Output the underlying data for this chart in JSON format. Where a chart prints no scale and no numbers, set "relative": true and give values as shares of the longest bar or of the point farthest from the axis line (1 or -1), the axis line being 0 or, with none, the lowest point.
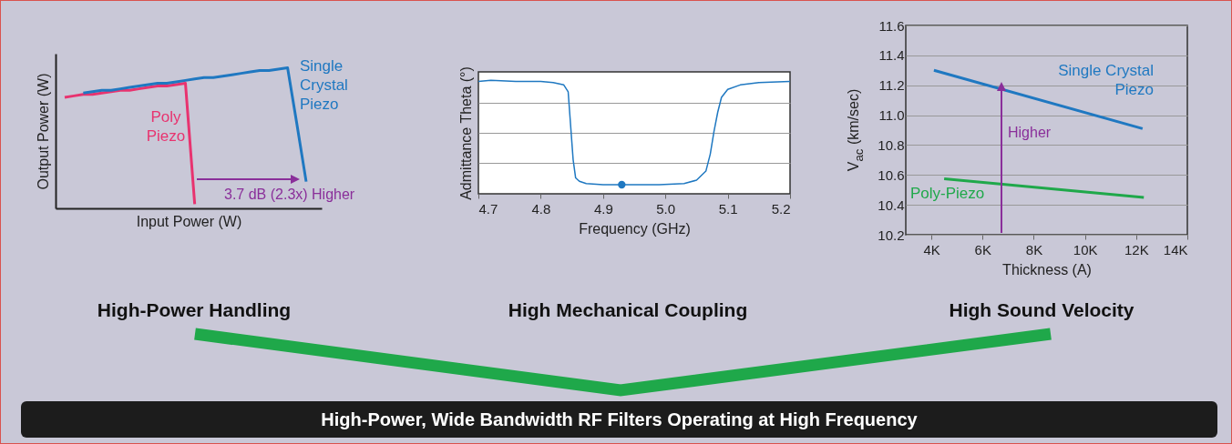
{
  "chart_data": [
    {
      "type": "line",
      "title": "High-Power Handling",
      "xlabel": "Input Power (W)",
      "ylabel": "Output Power (W)",
      "relative": true,
      "categories": [
        null,
        null,
        null,
        null,
        null,
        null,
        null,
        null,
        null,
        null,
        null,
        null,
        null,
        null,
        null,
        null,
        null,
        null,
        null,
        null,
        null,
        null,
        null,
        null,
        null,
        null,
        null
      ],
      "series": [
        {
          "name": "Poly Piezo",
          "color": "#e8336f",
          "values": [
            0.79,
            0.8,
            0.81,
            0.81,
            0.82,
            0.83,
            0.84,
            0.84,
            0.85,
            0.86,
            0.87,
            0.87,
            0.88,
            0.89,
            0.03,
            null,
            null,
            null,
            null,
            null,
            null,
            null,
            null,
            null,
            null,
            null,
            null
          ]
        },
        {
          "name": "Single Crystal Piezo",
          "color": "#1f78c1",
          "values": [
            null,
            null,
            0.82,
            0.83,
            0.84,
            0.84,
            0.85,
            0.86,
            0.87,
            0.88,
            0.89,
            0.89,
            0.9,
            0.91,
            0.92,
            0.93,
            0.93,
            0.94,
            0.95,
            0.96,
            0.97,
            0.98,
            0.98,
            0.99,
            1.0,
            0.6,
            0.19
          ]
        }
      ],
      "annotations": [
        "3.7 dB (2.3x) Higher"
      ]
    },
    {
      "type": "line",
      "title": "High Mechanical Coupling",
      "xlabel": "Frequency (GHz)",
      "ylabel": "Admittance Theta (°)",
      "relative": true,
      "grid": "y",
      "xlim": [
        4.7,
        5.2
      ],
      "xticks": [
        4.7,
        4.8,
        4.9,
        {
          "value": 5,
          "label": "5.0"
        },
        5.1,
        5.2
      ],
      "series": [
        {
          "color": "#1f78c1",
          "x": [
            4.7,
            4.72,
            4.76,
            4.8,
            4.82,
            4.837,
            4.844,
            4.848,
            4.852,
            4.856,
            4.862,
            4.873,
            4.9,
            4.93,
            4.99,
            5.03,
            5.05,
            5.065,
            5.072,
            5.078,
            5.084,
            5.09,
            5.1,
            5.12,
            5.15,
            5.2
          ],
          "values": [
            0.99,
            1.0,
            0.99,
            0.99,
            0.98,
            0.96,
            0.9,
            0.6,
            0.3,
            0.14,
            0.11,
            0.09,
            0.08,
            0.08,
            0.08,
            0.09,
            0.12,
            0.2,
            0.35,
            0.55,
            0.72,
            0.85,
            0.92,
            0.96,
            0.98,
            0.99
          ]
        },
        {
          "type": "scatter",
          "color": "#1f78c1",
          "x": [
            4.93
          ],
          "values": [
            0.08
          ]
        }
      ]
    },
    {
      "type": "line",
      "title": "High Sound Velocity",
      "xlabel": "Thickness (A)",
      "ylabel": "V$_{ac}$ (km/sec)",
      "grid": "y",
      "xlim": [
        3000,
        14000
      ],
      "xticks": [
        {
          "value": 4000,
          "label": "4K"
        },
        {
          "value": 6000,
          "label": "6K"
        },
        {
          "value": 8000,
          "label": "8K"
        },
        {
          "value": 10000,
          "label": "10K"
        },
        {
          "value": 12000,
          "label": "12K"
        },
        {
          "value": 14000,
          "label": "14K"
        }
      ],
      "ylim": [
        10.2,
        11.6
      ],
      "yticks": [
        10.2,
        10.4,
        10.6,
        10.8,
        {
          "value": 11,
          "label": "11.0"
        },
        11.2,
        11.4,
        11.6
      ],
      "series": [
        {
          "name": "Single Crystal Piezo",
          "color": "#1f78c1",
          "x": [
            4100,
            12250
          ],
          "values": [
            11.3,
            10.91
          ]
        },
        {
          "name": "Poly-Piezo",
          "color": "#1fa84a",
          "x": [
            4500,
            12300
          ],
          "values": [
            10.575,
            10.45
          ]
        }
      ],
      "annotations": [
        "Higher"
      ]
    },
    {
      "type": "other",
      "title": "High-Power, Wide Bandwidth RF Filters Operating at High Frequency"
    }
  ]
}
